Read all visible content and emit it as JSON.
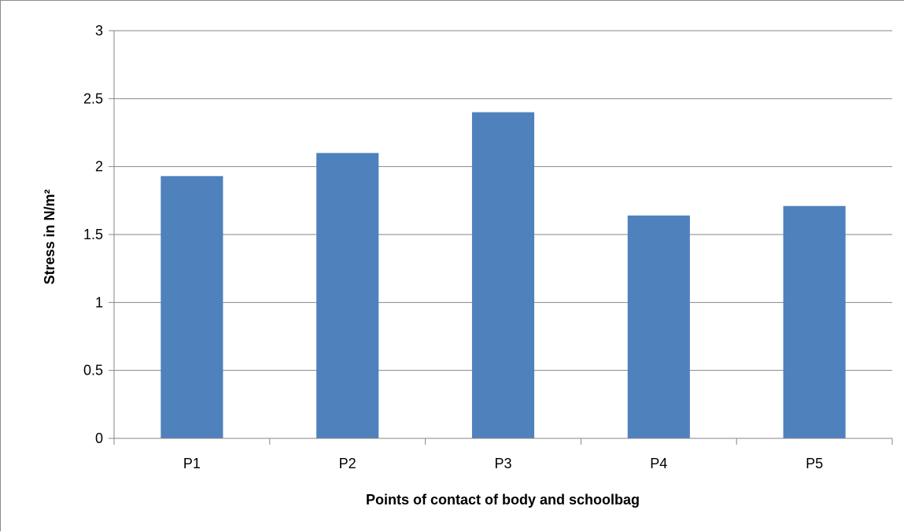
{
  "chart_data": {
    "type": "bar",
    "title": "",
    "xlabel": "Points of contact of body and schoolbag",
    "ylabel": "Stress in N/m²",
    "categories": [
      "P1",
      "P2",
      "P3",
      "P4",
      "P5"
    ],
    "values": [
      1.93,
      2.1,
      2.4,
      1.64,
      1.71
    ],
    "ylim": [
      0,
      3
    ],
    "yticks": [
      0,
      0.5,
      1,
      1.5,
      2,
      2.5,
      3
    ],
    "ytick_labels": [
      "0",
      "0.5",
      "1",
      "1.5",
      "2",
      "2.5",
      "3"
    ],
    "grid": true,
    "legend": "none",
    "bar_color": "#4F81BD",
    "gridline_color": "#868686"
  }
}
